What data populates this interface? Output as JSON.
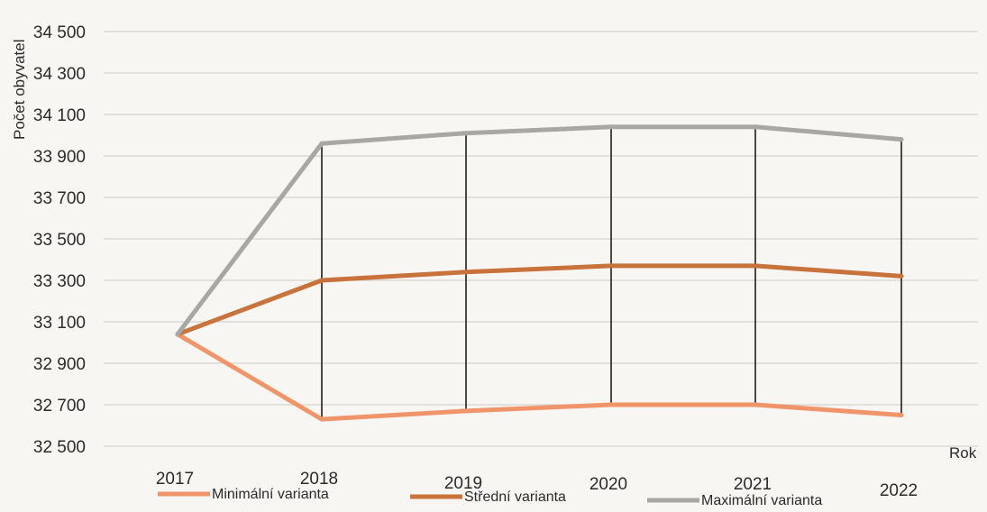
{
  "chart_data": {
    "type": "line",
    "title": "",
    "ylabel": "Počet obyvatel",
    "xlabel": "Rok",
    "x": [
      "2017",
      "2018",
      "2019",
      "2020",
      "2021",
      "2022"
    ],
    "ylim": [
      32500,
      34500
    ],
    "yticks": [
      32500,
      32700,
      32900,
      33100,
      33300,
      33500,
      33700,
      33900,
      34100,
      34300,
      34500
    ],
    "ytick_labels": [
      "32 500",
      "32 700",
      "32 900",
      "33 100",
      "33 300",
      "33 500",
      "33 700",
      "33 900",
      "34 100",
      "34 300",
      "34 500"
    ],
    "grid": true,
    "drop_lines": true,
    "legend_position": "bottom",
    "series": [
      {
        "name": "Minimální varianta",
        "color": "#f0956a",
        "values": [
          33040,
          32630,
          32670,
          32700,
          32700,
          32650
        ]
      },
      {
        "name": "Střední varianta",
        "color": "#c9733c",
        "values": [
          33040,
          33300,
          33340,
          33370,
          33370,
          33320
        ]
      },
      {
        "name": "Maximální varianta",
        "color": "#a9a7a3",
        "values": [
          33040,
          33960,
          34010,
          34040,
          34040,
          33980
        ]
      }
    ]
  }
}
